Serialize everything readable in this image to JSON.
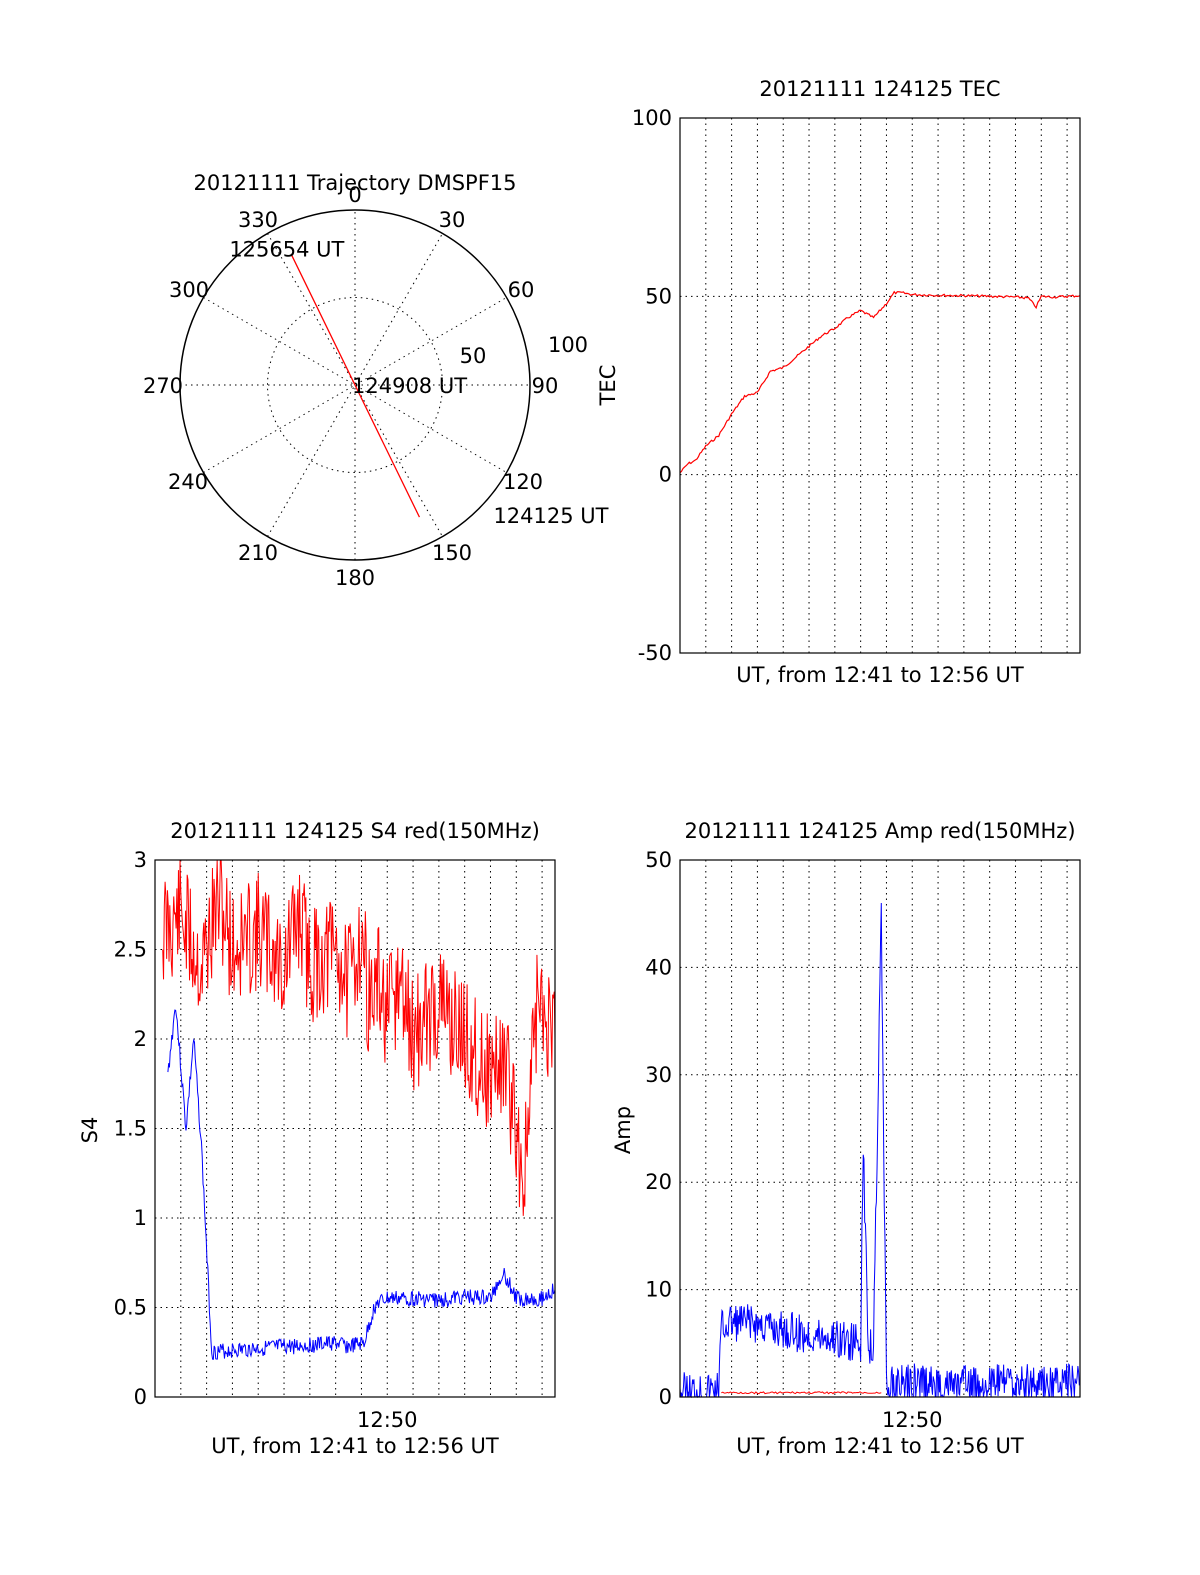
{
  "chart_data": [
    {
      "type": "polar",
      "title": "20121111 Trajectory DMSPF15",
      "angle_labels": [
        "0",
        "30",
        "60",
        "90",
        "120",
        "150",
        "180",
        "210",
        "240",
        "270",
        "300",
        "330"
      ],
      "radius_labels": [
        "50",
        "100"
      ],
      "rlim": [
        0,
        100
      ],
      "grid": true,
      "series": [
        {
          "color": "#ff0000",
          "points": [
            {
              "azimuth": 334,
              "zenith": 83
            },
            {
              "azimuth": 154,
              "zenith": 84
            }
          ]
        }
      ],
      "annotations": [
        {
          "text": "125654 UT",
          "azimuth": 334,
          "zenith": 83
        },
        {
          "text": "124908 UT",
          "azimuth": 0,
          "zenith": 0
        },
        {
          "text": "124125 UT",
          "azimuth": 154,
          "zenith": 84
        }
      ]
    },
    {
      "type": "line",
      "title": "20121111 124125 TEC",
      "xlabel": "UT, from 12:41 to 12:56 UT",
      "ylabel": "TEC",
      "xlim": [
        0,
        15.5
      ],
      "ylim": [
        -50,
        100
      ],
      "yticks": [
        "100",
        "50",
        "0",
        "-50"
      ],
      "grid": true,
      "series": [
        {
          "color": "#ff0000",
          "x": [
            0,
            0.3,
            0.6,
            1.0,
            1.5,
            2.0,
            2.5,
            3.0,
            3.5,
            4.0,
            4.5,
            5.0,
            5.5,
            6.0,
            6.5,
            7.0,
            7.5,
            8.0,
            8.3,
            8.6,
            9.0,
            10.0,
            11.0,
            12.0,
            13.0,
            13.5,
            13.8,
            14.0,
            14.5,
            15.0,
            15.5
          ],
          "y": [
            0.5,
            3,
            4,
            8,
            11,
            17,
            22,
            23,
            29,
            30,
            33,
            36,
            39,
            41,
            44,
            46,
            44,
            48,
            51,
            51,
            50.5,
            50.3,
            50.2,
            50,
            49.8,
            49.5,
            47,
            50,
            49.8,
            50,
            50.2
          ]
        }
      ]
    },
    {
      "type": "line",
      "title": "20121111 124125 S4 red(150MHz)",
      "xlabel": "UT, from 12:41 to 12:56 UT",
      "ylabel": "S4",
      "xlim": [
        0,
        15.5
      ],
      "ylim": [
        0,
        3
      ],
      "xticks": [
        "12:50"
      ],
      "yticks": [
        "3",
        "2.5",
        "2",
        "1.5",
        "1",
        "0.5",
        "0"
      ],
      "grid": true,
      "series": [
        {
          "color": "#ff0000",
          "x": [
            0.3,
            1.0,
            1.8,
            2.5,
            3.0,
            4.0,
            5.0,
            5.6,
            6.0,
            7.0,
            7.5,
            8.0,
            8.3,
            8.7,
            9.0,
            9.5,
            10.0,
            11.0,
            12.0,
            12.5,
            13.0,
            13.5,
            14.0,
            14.3,
            14.8,
            15.5
          ],
          "y": [
            2.6,
            2.7,
            2.4,
            2.8,
            2.5,
            2.6,
            2.4,
            2.7,
            2.4,
            2.5,
            2.3,
            2.6,
            2.2,
            2.3,
            2.1,
            2.3,
            2.0,
            2.2,
            2.0,
            1.9,
            1.8,
            1.9,
            1.5,
            1.2,
            2.2,
            2.0
          ]
        },
        {
          "color": "#0000ff",
          "x": [
            0.5,
            0.8,
            1.2,
            1.5,
            1.8,
            2.2,
            3.0,
            4.0,
            5.0,
            6.0,
            7.0,
            7.5,
            7.8,
            8.1,
            8.5,
            8.6,
            9.0,
            10.0,
            11.0,
            12.0,
            13.0,
            13.5,
            14.0,
            15.0,
            15.5
          ],
          "y": [
            1.8,
            2.2,
            1.5,
            2.0,
            1.4,
            0.25,
            0.26,
            0.27,
            0.28,
            0.29,
            0.3,
            0.28,
            0.29,
            0.3,
            0.5,
            0.52,
            0.55,
            0.55,
            0.54,
            0.56,
            0.55,
            0.7,
            0.55,
            0.55,
            0.6
          ]
        }
      ]
    },
    {
      "type": "line",
      "title": "20121111 124125 Amp red(150MHz)",
      "xlabel": "UT, from 12:41 to 12:56 UT",
      "ylabel": "Amp",
      "xlim": [
        0,
        15.5
      ],
      "ylim": [
        0,
        50
      ],
      "xticks": [
        "12:50"
      ],
      "yticks": [
        "50",
        "40",
        "30",
        "20",
        "10",
        "0"
      ],
      "grid": true,
      "series": [
        {
          "color": "#0000ff",
          "x": [
            0,
            1.0,
            1.5,
            1.6,
            2.0,
            3.0,
            4.0,
            5.0,
            6.0,
            7.0,
            7.1,
            7.3,
            7.5,
            7.8,
            8.0,
            8.3,
            9.0,
            10.0,
            11.0,
            12.0,
            13.0,
            14.0,
            15.5
          ],
          "y": [
            0.5,
            0.6,
            0.7,
            6.5,
            7.0,
            6.8,
            6.2,
            5.8,
            5.5,
            5.0,
            23,
            5.0,
            4.8,
            45,
            0.4,
            1.2,
            1.3,
            1.2,
            1.1,
            1.2,
            1.3,
            1.2,
            1.3
          ]
        },
        {
          "color": "#ff0000",
          "x": [
            1.6,
            3.0,
            5.0,
            7.5,
            7.8
          ],
          "y": [
            0.4,
            0.4,
            0.4,
            0.4,
            0.4
          ]
        }
      ]
    }
  ]
}
